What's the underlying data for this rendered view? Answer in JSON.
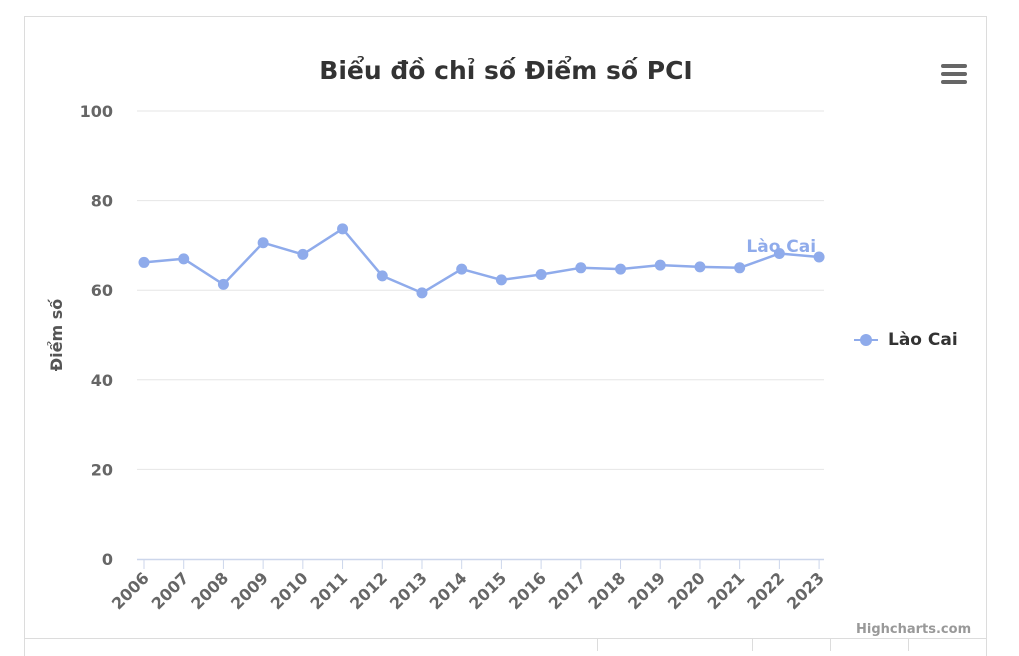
{
  "credits": "Highcharts.com",
  "menu_icon": "hamburger-menu-icon",
  "chart_data": {
    "type": "line",
    "title": "Biểu đồ chỉ số Điểm số PCI",
    "xlabel": "",
    "ylabel": "Điểm số",
    "ylim": [
      0,
      100
    ],
    "yticks": [
      0,
      20,
      40,
      60,
      80,
      100
    ],
    "categories": [
      "2006",
      "2007",
      "2008",
      "2009",
      "2010",
      "2011",
      "2012",
      "2013",
      "2014",
      "2015",
      "2016",
      "2017",
      "2018",
      "2019",
      "2020",
      "2021",
      "2022",
      "2023"
    ],
    "grid": true,
    "legend_position": "right",
    "series": [
      {
        "name": "Lào Cai",
        "color": "#8fabeb",
        "values": [
          66.2,
          67.0,
          61.3,
          70.6,
          68.0,
          73.7,
          63.2,
          59.4,
          64.7,
          62.3,
          63.5,
          65.0,
          64.7,
          65.6,
          65.2,
          65.0,
          68.2,
          67.4
        ],
        "end_label": "Lào Cai"
      }
    ]
  }
}
